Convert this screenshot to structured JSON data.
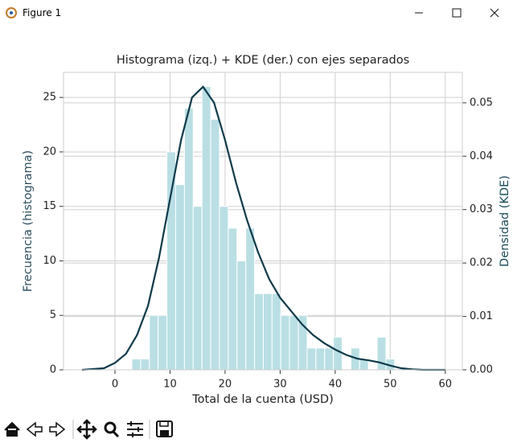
{
  "window": {
    "title": "Figure 1"
  },
  "chart_data": {
    "type": "histogram",
    "title": "Histograma (izq.) + KDE (der.) con ejes separados",
    "xlabel": "Total de la cuenta (USD)",
    "ylabel": "Frecuencia (histograma)",
    "y2label": "Densidad (KDE)",
    "xlim": [
      -9.35,
      63.1
    ],
    "ylim": [
      0,
      27.3
    ],
    "y2lim": [
      0,
      0.0557
    ],
    "xticks": [
      0,
      10,
      20,
      30,
      40,
      50,
      60
    ],
    "yticks": [
      0,
      5,
      10,
      15,
      20,
      25
    ],
    "y2ticks": [
      {
        "value": 0,
        "label": "0.00"
      },
      {
        "value": 0.01,
        "label": "0.01"
      },
      {
        "value": 0.02,
        "label": "0.02"
      },
      {
        "value": 0.03,
        "label": "0.03"
      },
      {
        "value": 0.04,
        "label": "0.04"
      },
      {
        "value": 0.05,
        "label": "0.05"
      }
    ],
    "grid": true,
    "series": [
      {
        "type": "histogram",
        "color": "#b9dfe4",
        "bins": [
          3.07,
          4.66,
          6.25,
          7.84,
          9.43,
          11.02,
          12.62,
          14.21,
          15.8,
          17.39,
          18.98,
          20.57,
          22.17,
          23.76,
          25.35,
          26.94,
          28.53,
          30.12,
          31.71,
          33.3,
          34.9,
          36.49,
          38.08,
          39.67,
          41.26,
          42.85,
          44.44,
          46.03,
          47.63,
          49.22,
          50.81
        ],
        "values": [
          1,
          1,
          5,
          5,
          20,
          17,
          24,
          15,
          26,
          23,
          15,
          13,
          10,
          13,
          7,
          7,
          7,
          5,
          5,
          5,
          2,
          2,
          2,
          3,
          0,
          2,
          1,
          0,
          3,
          1
        ]
      },
      {
        "type": "line",
        "axis": "y2",
        "color": "#0e3a4a",
        "x": [
          -6,
          -2,
          0,
          2,
          4,
          6,
          8,
          10,
          12,
          14,
          16,
          18,
          20,
          22,
          24,
          26,
          28,
          30,
          32,
          34,
          36,
          38,
          40,
          42,
          44,
          46,
          48,
          50,
          52,
          54,
          56,
          60
        ],
        "values": [
          0,
          0.0003,
          0.0013,
          0.003,
          0.0065,
          0.012,
          0.021,
          0.032,
          0.043,
          0.051,
          0.053,
          0.05,
          0.043,
          0.035,
          0.028,
          0.022,
          0.017,
          0.0135,
          0.011,
          0.0085,
          0.0065,
          0.005,
          0.0038,
          0.0028,
          0.0021,
          0.0018,
          0.0014,
          0.0008,
          0.0003,
          0.0001,
          0,
          0
        ]
      }
    ]
  }
}
